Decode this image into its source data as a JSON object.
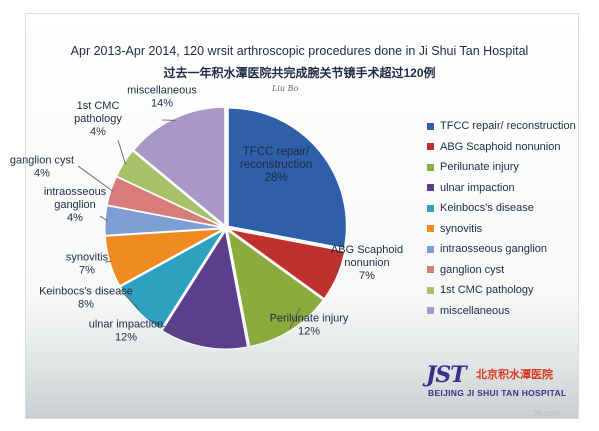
{
  "chart_data": {
    "type": "pie",
    "title": "Apr 2013-Apr 2014,  120 wrsit arthroscopic procedures done in Ji Shui Tan Hospital",
    "subtitle": "过去一年积水潭医院共完成腕关节镜手术超过120例",
    "legend_position": "right",
    "slices": [
      {
        "name": "TFCC repair/ reconstruction",
        "label": [
          "TFCC repair/",
          "reconstruction"
        ],
        "value": 28,
        "value_label": "28%",
        "color": "#2f5fa8"
      },
      {
        "name": "ABG Scaphoid nonunion",
        "label": [
          "ABG Scaphoid",
          "nonunion"
        ],
        "value": 7,
        "value_label": "7%",
        "color": "#c0302f"
      },
      {
        "name": "Perilunate injury",
        "label": [
          "Perilunate injury"
        ],
        "value": 12,
        "value_label": "12%",
        "color": "#8bab3e"
      },
      {
        "name": "ulnar impaction",
        "label": [
          "ulnar impaction"
        ],
        "value": 12,
        "value_label": "12%",
        "color": "#5b3e8c"
      },
      {
        "name": "Keinbocs's disease",
        "label": [
          "Keinbocs's disease"
        ],
        "value": 8,
        "value_label": "8%",
        "color": "#2da1c0"
      },
      {
        "name": "synovitis",
        "label": [
          "synovitis"
        ],
        "value": 7,
        "value_label": "7%",
        "color": "#ee8a1f"
      },
      {
        "name": "intraosseous ganglion",
        "label": [
          "intraosseous",
          "ganglion"
        ],
        "value": 4,
        "value_label": "4%",
        "color": "#7d9ed1"
      },
      {
        "name": "ganglion cyst",
        "label": [
          "ganglion cyst"
        ],
        "value": 4,
        "value_label": "4%",
        "color": "#d77c7a"
      },
      {
        "name": "1st CMC pathology",
        "label": [
          "1st CMC",
          "pathology"
        ],
        "value": 4,
        "value_label": "4%",
        "color": "#a8c26a"
      },
      {
        "name": "miscellaneous",
        "label": [
          "miscellaneous"
        ],
        "value": 14,
        "value_label": "14%",
        "color": "#a898c8"
      }
    ]
  },
  "signature": "Liu Bo",
  "logo": {
    "mark": "JST",
    "name_cn": "北京积水潭医院",
    "name_en": "BEIJING JI SHUI TAN HOSPITAL"
  },
  "watermark": "39.com"
}
